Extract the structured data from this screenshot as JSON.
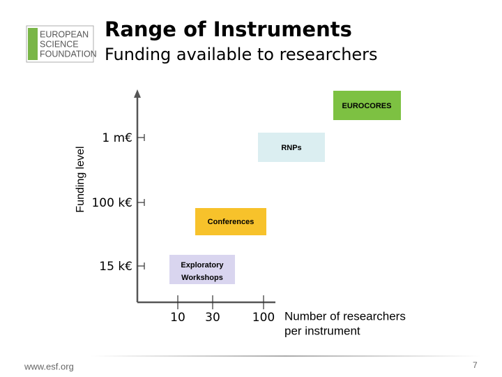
{
  "header": {
    "logo": [
      "EUROPEAN",
      "SCIENCE",
      "FOUNDATION"
    ],
    "title": "Range of Instruments",
    "subtitle": "Funding available to researchers"
  },
  "diagram": {
    "y_axis_label": "Funding level",
    "y_levels": [
      "1 m€",
      "100 k€",
      "15 k€"
    ],
    "x_levels": [
      "10",
      "30",
      "100"
    ],
    "x_axis_label": [
      "Number of researchers",
      "per instrument"
    ],
    "boxes": [
      {
        "lines": [
          "EUROCORES"
        ]
      },
      {
        "lines": [
          "RNPs"
        ]
      },
      {
        "lines": [
          "Conferences"
        ]
      },
      {
        "lines": [
          "Exploratory",
          "Workshops"
        ]
      }
    ]
  },
  "footer": {
    "url": "www.esf.org",
    "page": "7"
  }
}
